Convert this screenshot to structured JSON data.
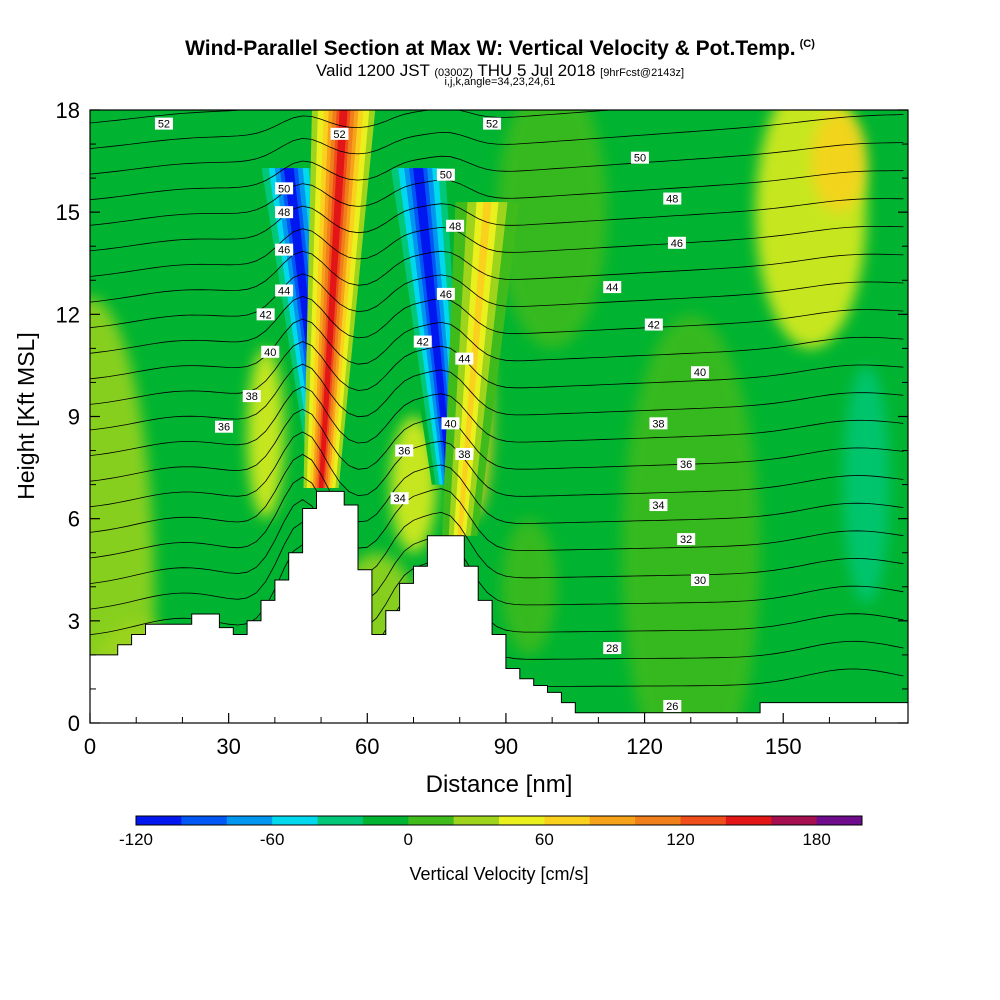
{
  "header": {
    "title": "Wind-Parallel Section at Max W: Vertical Velocity & Pot.Temp.",
    "title_units": "(C)",
    "valid": "Valid 1200 JST",
    "valid_utc": "(0300Z)",
    "date": "THU 5 Jul 2018",
    "forecast": "[9hrFcst@2143z]",
    "indices": "i,j,k,angle=34,23,24,61"
  },
  "chart_data": {
    "type": "heatmap",
    "title": "Wind-Parallel Section at Max W: Vertical Velocity & Pot.Temp.",
    "xlabel": "Distance [nm]",
    "ylabel": "Height [Kft MSL]",
    "xlim": [
      0,
      177
    ],
    "ylim": [
      0,
      18
    ],
    "x_ticks": [
      0,
      30,
      60,
      90,
      120,
      150
    ],
    "y_ticks": [
      0,
      3,
      6,
      9,
      12,
      15,
      18
    ],
    "colorbar": {
      "label": "Vertical Velocity [cm/s]",
      "ticks": [
        -120,
        -60,
        0,
        60,
        120,
        180
      ],
      "min": -120,
      "step": 20,
      "colors": [
        "#0018ef",
        "#0057f5",
        "#0096f0",
        "#00d8ee",
        "#00c878",
        "#00b431",
        "#3fbb1c",
        "#9ed41b",
        "#e9f01d",
        "#fad11c",
        "#f6a21b",
        "#f07e1a",
        "#ef4d19",
        "#e21617",
        "#a50f4f",
        "#6f0c8c"
      ]
    },
    "terrain_profile": [
      [
        0,
        2
      ],
      [
        6,
        2
      ],
      [
        6,
        2.3
      ],
      [
        9,
        2.3
      ],
      [
        9,
        2.6
      ],
      [
        12,
        2.6
      ],
      [
        12,
        2.9
      ],
      [
        22,
        2.9
      ],
      [
        22,
        3.2
      ],
      [
        28,
        3.2
      ],
      [
        28,
        2.8
      ],
      [
        31,
        2.8
      ],
      [
        31,
        2.6
      ],
      [
        34,
        2.6
      ],
      [
        34,
        3.0
      ],
      [
        37,
        3.0
      ],
      [
        37,
        3.6
      ],
      [
        40,
        3.6
      ],
      [
        40,
        4.2
      ],
      [
        43,
        4.2
      ],
      [
        43,
        5.0
      ],
      [
        46,
        5.0
      ],
      [
        46,
        6.3
      ],
      [
        49,
        6.3
      ],
      [
        49,
        6.8
      ],
      [
        55,
        6.8
      ],
      [
        55,
        6.4
      ],
      [
        58,
        6.4
      ],
      [
        58,
        4.5
      ],
      [
        61,
        4.5
      ],
      [
        61,
        2.6
      ],
      [
        64,
        2.6
      ],
      [
        64,
        3.3
      ],
      [
        67,
        3.3
      ],
      [
        67,
        4.1
      ],
      [
        70,
        4.1
      ],
      [
        70,
        4.6
      ],
      [
        73,
        4.6
      ],
      [
        73,
        5.5
      ],
      [
        81,
        5.5
      ],
      [
        81,
        4.6
      ],
      [
        84,
        4.6
      ],
      [
        84,
        3.6
      ],
      [
        87,
        3.6
      ],
      [
        87,
        2.6
      ],
      [
        90,
        2.6
      ],
      [
        90,
        1.6
      ],
      [
        93,
        1.6
      ],
      [
        93,
        1.3
      ],
      [
        96,
        1.3
      ],
      [
        96,
        1.1
      ],
      [
        99,
        1.1
      ],
      [
        99,
        0.9
      ],
      [
        102,
        0.9
      ],
      [
        102,
        0.6
      ],
      [
        105,
        0.6
      ],
      [
        105,
        0.3
      ],
      [
        145,
        0.3
      ],
      [
        145,
        0.6
      ],
      [
        177,
        0.6
      ]
    ],
    "updrafts": [
      {
        "x_base": 50,
        "y_base": 6.9,
        "x_top": 55,
        "y_top": 18,
        "peak": 150
      },
      {
        "x_base": 80,
        "y_base": 5.5,
        "x_top": 86,
        "y_top": 15,
        "peak": 60
      }
    ],
    "downdrafts": [
      {
        "x_base": 51,
        "y_base": 7,
        "x_top": 43,
        "y_top": 16,
        "peak": -120
      },
      {
        "x_base": 78,
        "y_base": 7,
        "x_top": 71,
        "y_top": 16,
        "peak": -110
      }
    ],
    "contour_labels": [
      {
        "text": "52",
        "x": 16,
        "y": 17.6
      },
      {
        "text": "52",
        "x": 54,
        "y": 17.3
      },
      {
        "text": "52",
        "x": 87,
        "y": 17.6
      },
      {
        "text": "50",
        "x": 42,
        "y": 15.7
      },
      {
        "text": "50",
        "x": 77,
        "y": 16.1
      },
      {
        "text": "50",
        "x": 119,
        "y": 16.6
      },
      {
        "text": "48",
        "x": 42,
        "y": 15.0
      },
      {
        "text": "48",
        "x": 79,
        "y": 14.6
      },
      {
        "text": "48",
        "x": 126,
        "y": 15.4
      },
      {
        "text": "46",
        "x": 42,
        "y": 13.9
      },
      {
        "text": "46",
        "x": 77,
        "y": 12.6
      },
      {
        "text": "46",
        "x": 127,
        "y": 14.1
      },
      {
        "text": "44",
        "x": 42,
        "y": 12.7
      },
      {
        "text": "44",
        "x": 81,
        "y": 10.7
      },
      {
        "text": "44",
        "x": 113,
        "y": 12.8
      },
      {
        "text": "42",
        "x": 38,
        "y": 12.0
      },
      {
        "text": "42",
        "x": 72,
        "y": 11.2
      },
      {
        "text": "42",
        "x": 122,
        "y": 11.7
      },
      {
        "text": "40",
        "x": 39,
        "y": 10.9
      },
      {
        "text": "40",
        "x": 78,
        "y": 8.8
      },
      {
        "text": "40",
        "x": 132,
        "y": 10.3
      },
      {
        "text": "38",
        "x": 35,
        "y": 9.6
      },
      {
        "text": "38",
        "x": 81,
        "y": 7.9
      },
      {
        "text": "38",
        "x": 123,
        "y": 8.8
      },
      {
        "text": "36",
        "x": 29,
        "y": 8.7
      },
      {
        "text": "36",
        "x": 68,
        "y": 8.0
      },
      {
        "text": "36",
        "x": 129,
        "y": 7.6
      },
      {
        "text": "34",
        "x": 67,
        "y": 6.6
      },
      {
        "text": "34",
        "x": 123,
        "y": 6.4
      },
      {
        "text": "32",
        "x": 129,
        "y": 5.4
      },
      {
        "text": "30",
        "x": 132,
        "y": 4.2
      },
      {
        "text": "28",
        "x": 113,
        "y": 2.2
      },
      {
        "text": "26",
        "x": 126,
        "y": 0.5
      }
    ]
  }
}
